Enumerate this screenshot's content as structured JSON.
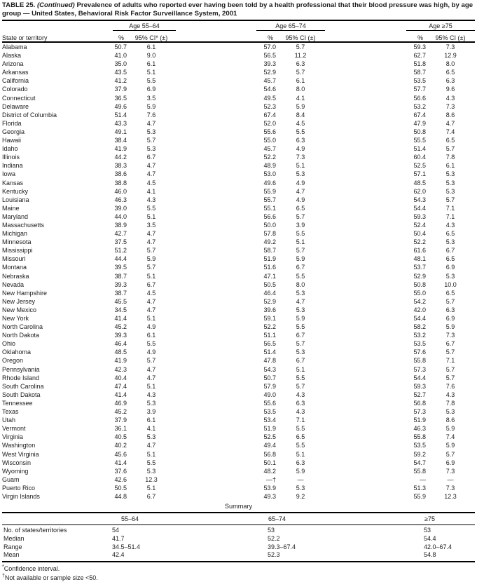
{
  "title": {
    "label": "TABLE 25.",
    "continued": "(Continued)",
    "text": "Prevalence of adults who reported ever having been told by a health professional that their blood pressure was high, by age group — United States, Behavioral Risk Factor Surveillance System, 2001"
  },
  "table": {
    "row_header": "State or territory",
    "groups": [
      {
        "label": "Age 55–64",
        "pct_header": "%",
        "ci_header": "95% CI* (±)"
      },
      {
        "label": "Age 65–74",
        "pct_header": "%",
        "ci_header": "95% CI (±)"
      },
      {
        "label": "Age ≥75",
        "pct_header": "%",
        "ci_header": "95% CI (±)"
      }
    ],
    "rows": [
      {
        "state": "Alabama",
        "values": [
          "50.7",
          "6.1",
          "57.0",
          "5.7",
          "59.3",
          "7.3"
        ]
      },
      {
        "state": "Alaska",
        "values": [
          "41.0",
          "9.0",
          "56.5",
          "11.2",
          "62.7",
          "12.9"
        ]
      },
      {
        "state": "Arizona",
        "values": [
          "35.0",
          "6.1",
          "39.3",
          "6.3",
          "51.8",
          "8.0"
        ]
      },
      {
        "state": "Arkansas",
        "values": [
          "43.5",
          "5.1",
          "52.9",
          "5.7",
          "58.7",
          "6.5"
        ]
      },
      {
        "state": "California",
        "values": [
          "41.2",
          "5.5",
          "45.7",
          "6.1",
          "53.5",
          "6.3"
        ]
      },
      {
        "state": "Colorado",
        "values": [
          "37.9",
          "6.9",
          "54.6",
          "8.0",
          "57.7",
          "9.6"
        ]
      },
      {
        "state": "Connecticut",
        "values": [
          "36.5",
          "3.5",
          "49.5",
          "4.1",
          "56.6",
          "4.3"
        ]
      },
      {
        "state": "Delaware",
        "values": [
          "49.6",
          "5.9",
          "52.3",
          "5.9",
          "53.2",
          "7.3"
        ]
      },
      {
        "state": "District of Columbia",
        "values": [
          "51.4",
          "7.6",
          "67.4",
          "8.4",
          "67.4",
          "8.6"
        ]
      },
      {
        "state": "Florida",
        "values": [
          "43.3",
          "4.7",
          "52.0",
          "4.5",
          "47.9",
          "4.7"
        ]
      },
      {
        "state": "Georgia",
        "values": [
          "49.1",
          "5.3",
          "55.6",
          "5.5",
          "50.8",
          "7.4"
        ]
      },
      {
        "state": "Hawaii",
        "values": [
          "38.4",
          "5.7",
          "55.0",
          "6.3",
          "55.5",
          "6.5"
        ]
      },
      {
        "state": "Idaho",
        "values": [
          "41.9",
          "5.3",
          "45.7",
          "4.9",
          "51.4",
          "5.7"
        ]
      },
      {
        "state": "Illinois",
        "values": [
          "44.2",
          "6.7",
          "52.2",
          "7.3",
          "60.4",
          "7.8"
        ]
      },
      {
        "state": "Indiana",
        "values": [
          "38.3",
          "4.7",
          "48.9",
          "5.1",
          "52.5",
          "6.1"
        ]
      },
      {
        "state": "Iowa",
        "values": [
          "38.6",
          "4.7",
          "53.0",
          "5.3",
          "57.1",
          "5.3"
        ]
      },
      {
        "state": "Kansas",
        "values": [
          "38.8",
          "4.5",
          "49.6",
          "4.9",
          "48.5",
          "5.3"
        ]
      },
      {
        "state": "Kentucky",
        "values": [
          "46.0",
          "4.1",
          "55.9",
          "4.7",
          "62.0",
          "5.3"
        ]
      },
      {
        "state": "Louisiana",
        "values": [
          "46.3",
          "4.3",
          "55.7",
          "4.9",
          "54.3",
          "5.7"
        ]
      },
      {
        "state": "Maine",
        "values": [
          "39.0",
          "5.5",
          "55.1",
          "6.5",
          "54.4",
          "7.1"
        ]
      },
      {
        "state": "Maryland",
        "values": [
          "44.0",
          "5.1",
          "56.6",
          "5.7",
          "59.3",
          "7.1"
        ]
      },
      {
        "state": "Massachusetts",
        "values": [
          "38.9",
          "3.5",
          "50.0",
          "3.9",
          "52.4",
          "4.3"
        ]
      },
      {
        "state": "Michigan",
        "values": [
          "42.7",
          "4.7",
          "57.8",
          "5.5",
          "50.4",
          "6.5"
        ]
      },
      {
        "state": "Minnesota",
        "values": [
          "37.5",
          "4.7",
          "49.2",
          "5.1",
          "52.2",
          "5.3"
        ]
      },
      {
        "state": "Mississippi",
        "values": [
          "51.2",
          "5.7",
          "58.7",
          "5.7",
          "61.6",
          "6.7"
        ]
      },
      {
        "state": "Missouri",
        "values": [
          "44.4",
          "5.9",
          "51.9",
          "5.9",
          "48.1",
          "6.5"
        ]
      },
      {
        "state": "Montana",
        "values": [
          "39.5",
          "5.7",
          "51.6",
          "6.7",
          "53.7",
          "6.9"
        ]
      },
      {
        "state": "Nebraska",
        "values": [
          "38.7",
          "5.1",
          "47.1",
          "5.5",
          "52.9",
          "5.3"
        ]
      },
      {
        "state": "Nevada",
        "values": [
          "39.3",
          "6.7",
          "50.5",
          "8.0",
          "50.8",
          "10.0"
        ]
      },
      {
        "state": "New Hampshire",
        "values": [
          "38.7",
          "4.5",
          "46.4",
          "5.3",
          "55.0",
          "6.5"
        ]
      },
      {
        "state": "New Jersey",
        "values": [
          "45.5",
          "4.7",
          "52.9",
          "4.7",
          "54.2",
          "5.7"
        ]
      },
      {
        "state": "New Mexico",
        "values": [
          "34.5",
          "4.7",
          "39.6",
          "5.3",
          "42.0",
          "6.3"
        ]
      },
      {
        "state": "New York",
        "values": [
          "41.4",
          "5.1",
          "59.1",
          "5.9",
          "54.4",
          "6.9"
        ]
      },
      {
        "state": "North Carolina",
        "values": [
          "45.2",
          "4.9",
          "52.2",
          "5.5",
          "58.2",
          "5.9"
        ]
      },
      {
        "state": "North Dakota",
        "values": [
          "39.3",
          "6.1",
          "51.1",
          "6.7",
          "53.2",
          "7.3"
        ]
      },
      {
        "state": "Ohio",
        "values": [
          "46.4",
          "5.5",
          "56.5",
          "5.7",
          "53.5",
          "6.7"
        ]
      },
      {
        "state": "Oklahoma",
        "values": [
          "48.5",
          "4.9",
          "51.4",
          "5.3",
          "57.6",
          "5.7"
        ]
      },
      {
        "state": "Oregon",
        "values": [
          "41.9",
          "5.7",
          "47.8",
          "6.7",
          "55.8",
          "7.1"
        ]
      },
      {
        "state": "Pennsylvania",
        "values": [
          "42.3",
          "4.7",
          "54.3",
          "5.1",
          "57.3",
          "5.7"
        ]
      },
      {
        "state": "Rhode Island",
        "values": [
          "40.4",
          "4.7",
          "50.7",
          "5.5",
          "54.4",
          "5.7"
        ]
      },
      {
        "state": "South Carolina",
        "values": [
          "47.4",
          "5.1",
          "57.9",
          "5.7",
          "59.3",
          "7.6"
        ]
      },
      {
        "state": "South Dakota",
        "values": [
          "41.4",
          "4.3",
          "49.0",
          "4.3",
          "52.7",
          "4.3"
        ]
      },
      {
        "state": "Tennessee",
        "values": [
          "46.9",
          "5.3",
          "55.6",
          "6.3",
          "56.8",
          "7.8"
        ]
      },
      {
        "state": "Texas",
        "values": [
          "45.2",
          "3.9",
          "53.5",
          "4.3",
          "57.3",
          "5.3"
        ]
      },
      {
        "state": "Utah",
        "values": [
          "37.9",
          "6.1",
          "53.4",
          "7.1",
          "51.9",
          "8.6"
        ]
      },
      {
        "state": "Vermont",
        "values": [
          "36.1",
          "4.1",
          "51.9",
          "5.5",
          "46.3",
          "5.9"
        ]
      },
      {
        "state": "Virginia",
        "values": [
          "40.5",
          "5.3",
          "52.5",
          "6.5",
          "55.8",
          "7.4"
        ]
      },
      {
        "state": "Washington",
        "values": [
          "40.2",
          "4.7",
          "49.4",
          "5.5",
          "53.5",
          "5.9"
        ]
      },
      {
        "state": "West Virginia",
        "values": [
          "45.6",
          "5.1",
          "56.8",
          "5.1",
          "59.2",
          "5.7"
        ]
      },
      {
        "state": "Wisconsin",
        "values": [
          "41.4",
          "5.5",
          "50.1",
          "6.3",
          "54.7",
          "6.9"
        ]
      },
      {
        "state": "Wyoming",
        "values": [
          "37.6",
          "5.3",
          "48.2",
          "5.9",
          "55.8",
          "7.3"
        ]
      },
      {
        "state": "Guam",
        "values": [
          "42.6",
          "12.3",
          "—†",
          "—",
          "—",
          "—"
        ]
      },
      {
        "state": "Puerto Rico",
        "values": [
          "50.5",
          "5.1",
          "53.9",
          "5.3",
          "51.3",
          "7.3"
        ]
      },
      {
        "state": "Virgin Islands",
        "values": [
          "44.8",
          "6.7",
          "49.3",
          "9.2",
          "55.9",
          "12.3"
        ]
      }
    ]
  },
  "summary": {
    "heading": "Summary",
    "columns": [
      "55–64",
      "65–74",
      "≥75"
    ],
    "rows": [
      {
        "label": "No. of states/territories",
        "values": [
          "54",
          "53",
          "53"
        ]
      },
      {
        "label": "Median",
        "values": [
          "41.7",
          "52.2",
          "54.4"
        ]
      },
      {
        "label": "Range",
        "values": [
          "34.5–51.4",
          "39.3–67.4",
          "42.0–67.4"
        ]
      },
      {
        "label": "Mean",
        "values": [
          "42.4",
          "52.3",
          "54.8"
        ]
      }
    ]
  },
  "footnotes": [
    {
      "marker": "*",
      "text": "Confidence interval."
    },
    {
      "marker": "†",
      "text": "Not available or sample size <50."
    }
  ]
}
